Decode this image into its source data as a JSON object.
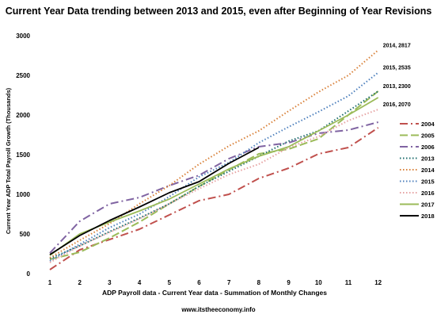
{
  "chart_data": {
    "type": "line",
    "title": "Current Year Data trending between  2013 and 2015, even after Beginning of Year Revisions",
    "xlabel": "ADP Payroll data - Current Year data - Summation of Monthly Changes",
    "ylabel": "Current Year ADP Total Payroll Growth (Thousands)",
    "source": "www.itstheeconomy.info",
    "x": [
      1,
      2,
      3,
      4,
      5,
      6,
      7,
      8,
      9,
      10,
      11,
      12
    ],
    "x_tick_labels": [
      "1",
      "2",
      "3",
      "4",
      "5",
      "6",
      "7",
      "8",
      "9",
      "10",
      "11",
      "12"
    ],
    "ylim": [
      0,
      3000
    ],
    "y_ticks": [
      0,
      500,
      1000,
      1500,
      2000,
      2500,
      3000
    ],
    "y_tick_labels": [
      "0",
      "500",
      "1000",
      "1500",
      "2000",
      "2500",
      "3000"
    ],
    "grid": false,
    "legend_position": "right",
    "series": [
      {
        "name": "2004",
        "color": "#c0504d",
        "dash": "longdashdot",
        "values": [
          50,
          300,
          430,
          560,
          740,
          920,
          1000,
          1200,
          1330,
          1510,
          1590,
          1840
        ]
      },
      {
        "name": "2005",
        "color": "#9bbb59",
        "dash": "longdash",
        "values": [
          180,
          270,
          450,
          650,
          880,
          1100,
          1310,
          1510,
          1570,
          1700,
          2000,
          2300
        ]
      },
      {
        "name": "2006",
        "color": "#8064a2",
        "dash": "longdashdot",
        "values": [
          260,
          660,
          880,
          960,
          1110,
          1240,
          1450,
          1600,
          1650,
          1770,
          1810,
          1910
        ]
      },
      {
        "name": "2013",
        "color": "#1f6e6e",
        "dash": "dot",
        "values": [
          190,
          350,
          530,
          700,
          880,
          1100,
          1290,
          1480,
          1670,
          1800,
          2050,
          2300
        ]
      },
      {
        "name": "2014",
        "color": "#d9823b",
        "dash": "dot",
        "values": [
          200,
          420,
          630,
          880,
          1110,
          1380,
          1610,
          1800,
          2050,
          2290,
          2500,
          2817
        ]
      },
      {
        "name": "2015",
        "color": "#4f81bd",
        "dash": "dot",
        "values": [
          160,
          370,
          580,
          750,
          970,
          1220,
          1400,
          1650,
          1850,
          2040,
          2240,
          2535
        ]
      },
      {
        "name": "2016",
        "color": "#e6a3a3",
        "dash": "dot",
        "values": [
          140,
          350,
          520,
          690,
          880,
          1070,
          1250,
          1380,
          1590,
          1730,
          1930,
          2070
        ]
      },
      {
        "name": "2017",
        "color": "#9bbb59",
        "dash": "solid",
        "values": [
          230,
          500,
          650,
          790,
          940,
          1130,
          1320,
          1480,
          1600,
          1800,
          2000,
          2220
        ]
      },
      {
        "name": "2018",
        "color": "#000000",
        "dash": "solid",
        "values": [
          240,
          480,
          670,
          840,
          1020,
          1160,
          1390,
          1590,
          null,
          null,
          null,
          null
        ]
      }
    ],
    "annotations": [
      {
        "text": "2014, 2817",
        "series": "2014",
        "x": 12,
        "y": 2817
      },
      {
        "text": "2015, 2535",
        "series": "2015",
        "x": 12,
        "y": 2535
      },
      {
        "text": "2013, 2300",
        "series": "2013",
        "x": 12,
        "y": 2300
      },
      {
        "text": "2016, 2070",
        "series": "2016",
        "x": 12,
        "y": 2070
      }
    ]
  }
}
